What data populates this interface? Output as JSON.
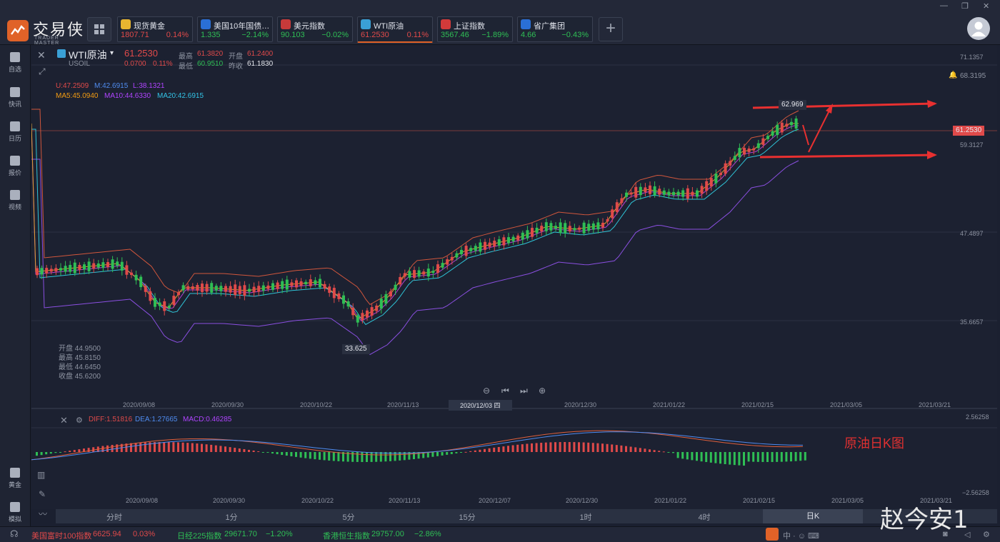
{
  "app": {
    "name": "交易侠",
    "subtitle": "TRADER MASTER"
  },
  "tickers": [
    {
      "name": "现货黄金",
      "value": "1807.71",
      "change": "0.14%",
      "dir": "up",
      "icon_color": "#e8b530"
    },
    {
      "name": "美国10年国债…",
      "value": "1.335",
      "change": "−2.14%",
      "dir": "down",
      "icon_color": "#2a6fd6"
    },
    {
      "name": "美元指数",
      "value": "90.103",
      "change": "−0.02%",
      "dir": "down",
      "icon_color": "#c83a3a"
    },
    {
      "name": "WTI原油",
      "value": "61.2530",
      "change": "0.11%",
      "dir": "up",
      "icon_color": "#3aa0d6"
    },
    {
      "name": "上证指数",
      "value": "3567.46",
      "change": "−1.89%",
      "dir": "down",
      "icon_color": "#d23a3a"
    },
    {
      "name": "省广集团",
      "value": "4.66",
      "change": "−0.43%",
      "dir": "down",
      "icon_color": "#2a6fd6"
    }
  ],
  "sidebar": [
    "自选",
    "快讯",
    "日历",
    "报价",
    "视频",
    "黄金",
    "模拟"
  ],
  "symbol": {
    "name": "WTI原油",
    "code": "USOIL",
    "price": "61.2530",
    "change": "0.0700",
    "pct": "0.11%",
    "high_label": "最高",
    "high": "61.3820",
    "open_label": "开盘",
    "open": "61.2400",
    "low_label": "最低",
    "low": "60.9510",
    "prev_label": "昨收",
    "prev": "61.1830"
  },
  "indicators": {
    "boll": {
      "u": "U:47.2509",
      "m": "M:42.6915",
      "l": "L:38.1321"
    },
    "ma": {
      "ma5": "MA5:45.0940",
      "ma10": "MA10:44.6330",
      "ma20": "MA20:42.6915"
    }
  },
  "price_axis": [
    "71.1357",
    "68.3195",
    "59.3127",
    "47.4897",
    "35.6657"
  ],
  "current_price_tag": "61.2530",
  "high_marker": "62.969",
  "low_marker": "33.625",
  "ohlc_box": [
    {
      "label": "开盘",
      "value": "44.9500"
    },
    {
      "label": "最高",
      "value": "45.8150"
    },
    {
      "label": "最低",
      "value": "44.6450"
    },
    {
      "label": "收盘",
      "value": "45.6200"
    }
  ],
  "date_axis": [
    "2020/09/08",
    "2020/09/30",
    "2020/10/22",
    "2020/11/13",
    "2020/12/03 四",
    "2020/12/30",
    "2021/01/22",
    "2021/02/15",
    "2021/03/05",
    "2021/03/21"
  ],
  "annotation": "原油日K图",
  "macd": {
    "diff": "DIFF:1.51816",
    "dea": "DEA:1.27665",
    "macd": "MACD:0.46285",
    "axis_top": "2.56258",
    "axis_bottom": "−2.56258"
  },
  "macd_date_axis": [
    "2020/09/08",
    "2020/09/30",
    "2020/10/22",
    "2020/11/13",
    "2020/12/07",
    "2020/12/30",
    "2021/01/22",
    "2021/02/15",
    "2021/03/05",
    "2021/03/21"
  ],
  "timeframes": [
    "分时",
    "1分",
    "5分",
    "15分",
    "1时",
    "4时",
    "日K"
  ],
  "status": [
    {
      "name": "美国富时100指数",
      "value": "6625.94",
      "change": "0.03%",
      "dir": "up"
    },
    {
      "name": "日经225指数",
      "value": "29671.70",
      "change": "−1.20%",
      "dir": "down"
    },
    {
      "name": "香港恒生指数",
      "value": "29757.00",
      "change": "−2.86%",
      "dir": "down"
    }
  ],
  "watermark": "赵今安1",
  "colors": {
    "up": "#e04a4a",
    "down": "#2fbf55",
    "accent": "#e06228"
  }
}
